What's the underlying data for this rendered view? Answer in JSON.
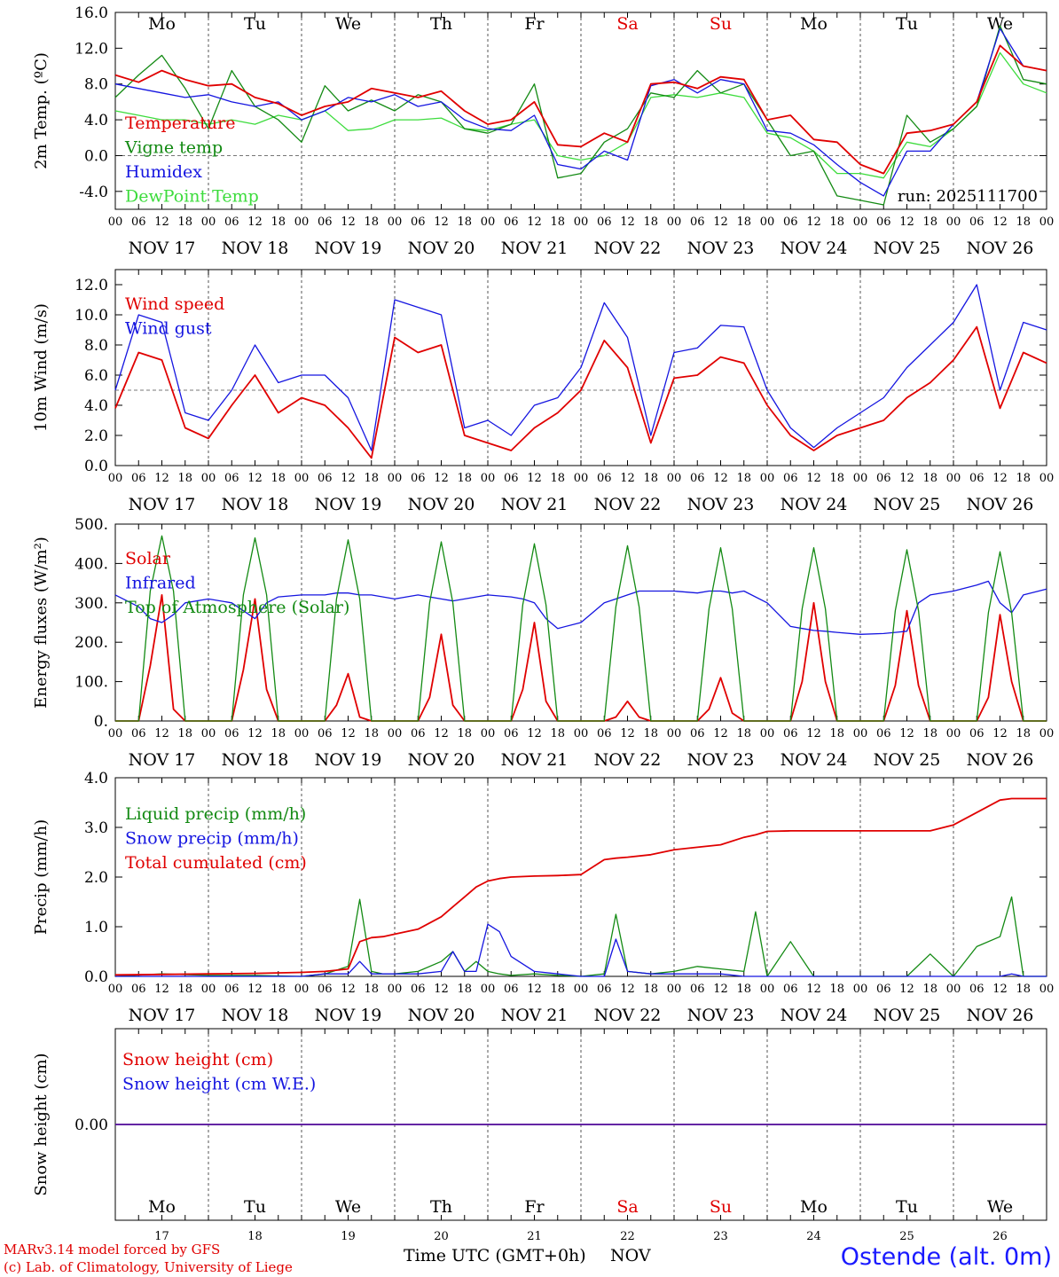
{
  "colors": {
    "red": "#e00000",
    "green": "#138a13",
    "blue": "#1515e0",
    "lightgreen": "#3ddc3d",
    "black": "#000000",
    "grid": "#555555"
  },
  "days_of_week": [
    "Mo",
    "Tu",
    "We",
    "Th",
    "Fr",
    "Sa",
    "Su",
    "Mo",
    "Tu",
    "We"
  ],
  "weekend_flags": [
    false,
    false,
    false,
    false,
    false,
    true,
    true,
    false,
    false,
    false
  ],
  "date_labels": [
    "NOV 17",
    "NOV 18",
    "NOV 19",
    "NOV 20",
    "NOV 21",
    "NOV 22",
    "NOV 23",
    "NOV 24",
    "NOV 25",
    "NOV 26"
  ],
  "hour_ticks": [
    "00",
    "06",
    "12",
    "18"
  ],
  "bottom_day_numbers": [
    "17",
    "18",
    "19",
    "20",
    "21",
    "22",
    "23",
    "24",
    "25",
    "26"
  ],
  "footer": {
    "model_line": "MARv3.14 model forced by GFS",
    "lab_line": "(c) Lab. of Climatology, University of Liege",
    "xlabel": "Time UTC (GMT+0h)",
    "month": "NOV",
    "station": "Ostende (alt. 0m)"
  },
  "chart_data": [
    {
      "type": "line",
      "ylabel": "2m Temp. (ºC)",
      "ylim": [
        -6,
        16
      ],
      "yticks": [
        "16.0",
        "12.0",
        "8.0",
        "4.0",
        "0.0",
        "-4.0"
      ],
      "reference_line": 0,
      "run_label": "run: 2025111700",
      "x_days": [
        17.0,
        17.25,
        17.5,
        17.75,
        18.0,
        18.25,
        18.5,
        18.75,
        19.0,
        19.25,
        19.5,
        19.75,
        20.0,
        20.25,
        20.5,
        20.75,
        21.0,
        21.25,
        21.5,
        21.75,
        22.0,
        22.25,
        22.5,
        22.75,
        23.0,
        23.25,
        23.5,
        23.75,
        24.0,
        24.25,
        24.5,
        24.75,
        25.0,
        25.25,
        25.5,
        25.75,
        26.0,
        26.25,
        26.5,
        26.75,
        27.0
      ],
      "series": [
        {
          "name": "Temperature",
          "color": "red",
          "values": [
            9.0,
            8.2,
            9.5,
            8.5,
            7.8,
            8.0,
            6.5,
            5.8,
            4.5,
            5.5,
            6.0,
            7.5,
            7.0,
            6.5,
            7.2,
            5.0,
            3.5,
            4.0,
            6.0,
            1.2,
            1.0,
            2.5,
            1.5,
            8.0,
            8.2,
            7.5,
            8.8,
            8.5,
            4.0,
            4.5,
            1.8,
            1.5,
            -1.0,
            -2.0,
            2.5,
            2.8,
            3.5,
            6.0,
            12.3,
            10.0,
            9.5
          ]
        },
        {
          "name": "Vigne temp",
          "color": "green",
          "values": [
            6.5,
            9.0,
            11.2,
            7.5,
            3.0,
            9.5,
            5.5,
            4.0,
            1.5,
            7.8,
            5.0,
            6.2,
            5.0,
            6.8,
            6.0,
            3.0,
            2.5,
            3.5,
            8.0,
            -2.5,
            -2.0,
            1.5,
            3.0,
            7.0,
            6.5,
            9.5,
            7.0,
            8.0,
            4.0,
            0.0,
            0.5,
            -4.5,
            -5.0,
            -5.5,
            4.5,
            1.5,
            3.0,
            5.5,
            14.5,
            8.5,
            8.0
          ]
        },
        {
          "name": "Humidex",
          "color": "blue",
          "values": [
            8.0,
            7.5,
            7.0,
            6.5,
            6.8,
            6.0,
            5.5,
            6.0,
            4.0,
            5.0,
            6.5,
            6.0,
            6.8,
            5.5,
            6.0,
            4.0,
            3.0,
            2.8,
            4.5,
            -1.0,
            -1.5,
            0.5,
            -0.5,
            7.8,
            8.5,
            7.0,
            8.5,
            8.0,
            2.8,
            2.5,
            1.2,
            -1.0,
            -3.0,
            -4.5,
            0.5,
            0.5,
            3.5,
            6.0,
            14.2,
            10.0,
            9.5
          ]
        },
        {
          "name": "DewPoint Temp",
          "color": "lightgreen",
          "values": [
            5.0,
            4.5,
            4.0,
            4.0,
            3.5,
            4.0,
            3.5,
            4.5,
            4.0,
            5.0,
            2.8,
            3.0,
            4.0,
            4.0,
            4.2,
            3.0,
            2.8,
            3.5,
            4.0,
            0.0,
            -0.5,
            0.0,
            1.5,
            6.5,
            6.8,
            6.5,
            7.0,
            6.5,
            2.5,
            2.0,
            0.5,
            -2.0,
            -2.0,
            -2.5,
            1.5,
            1.0,
            3.0,
            5.5,
            11.5,
            8.0,
            7.0
          ]
        }
      ]
    },
    {
      "type": "line",
      "ylabel": "10m Wind (m/s)",
      "ylim": [
        0,
        13
      ],
      "yticks": [
        "12.0",
        "10.0",
        "8.0",
        "6.0",
        "4.0",
        "2.0",
        "0.0"
      ],
      "reference_line": 5,
      "x_days": [
        17.0,
        17.25,
        17.5,
        17.75,
        18.0,
        18.25,
        18.5,
        18.75,
        19.0,
        19.25,
        19.5,
        19.75,
        20.0,
        20.25,
        20.5,
        20.75,
        21.0,
        21.25,
        21.5,
        21.75,
        22.0,
        22.25,
        22.5,
        22.75,
        23.0,
        23.25,
        23.5,
        23.75,
        24.0,
        24.25,
        24.5,
        24.75,
        25.0,
        25.25,
        25.5,
        25.75,
        26.0,
        26.25,
        26.5,
        26.75,
        27.0
      ],
      "series": [
        {
          "name": "Wind speed",
          "color": "red",
          "values": [
            3.8,
            7.5,
            7.0,
            2.5,
            1.8,
            4.0,
            6.0,
            3.5,
            4.5,
            4.0,
            2.5,
            0.5,
            8.5,
            7.5,
            8.0,
            2.0,
            1.5,
            1.0,
            2.5,
            3.5,
            5.0,
            8.3,
            6.5,
            1.5,
            5.8,
            6.0,
            7.2,
            6.8,
            4.0,
            2.0,
            1.0,
            2.0,
            2.5,
            3.0,
            4.5,
            5.5,
            7.0,
            9.2,
            3.8,
            7.5,
            6.8
          ]
        },
        {
          "name": "Wind gust",
          "color": "blue",
          "values": [
            5.0,
            10.0,
            9.5,
            3.5,
            3.0,
            5.0,
            8.0,
            5.5,
            6.0,
            6.0,
            4.5,
            1.0,
            11.0,
            10.5,
            10.0,
            2.5,
            3.0,
            2.0,
            4.0,
            4.5,
            6.5,
            10.8,
            8.5,
            2.0,
            7.5,
            7.8,
            9.3,
            9.2,
            5.0,
            2.5,
            1.2,
            2.5,
            3.5,
            4.5,
            6.5,
            8.0,
            9.5,
            12.0,
            5.0,
            9.5,
            9.0
          ]
        }
      ]
    },
    {
      "type": "line",
      "ylabel": "Energy fluxes (W/m²)",
      "ylim": [
        0,
        500
      ],
      "yticks": [
        "500.",
        "400.",
        "300.",
        "200.",
        "100.",
        "0."
      ],
      "reference_line": null,
      "x_days": [
        17.0,
        17.25,
        17.375,
        17.5,
        17.625,
        17.75,
        18.0,
        18.25,
        18.375,
        18.5,
        18.625,
        18.75,
        19.0,
        19.25,
        19.375,
        19.5,
        19.625,
        19.75,
        20.0,
        20.25,
        20.375,
        20.5,
        20.625,
        20.75,
        21.0,
        21.25,
        21.375,
        21.5,
        21.625,
        21.75,
        22.0,
        22.25,
        22.375,
        22.5,
        22.625,
        22.75,
        23.0,
        23.25,
        23.375,
        23.5,
        23.625,
        23.75,
        24.0,
        24.25,
        24.375,
        24.5,
        24.625,
        24.75,
        25.0,
        25.25,
        25.375,
        25.5,
        25.625,
        25.75,
        26.0,
        26.25,
        26.375,
        26.5,
        26.625,
        26.75,
        27.0
      ],
      "series": [
        {
          "name": "Solar",
          "color": "red",
          "values": [
            0,
            0,
            140,
            320,
            30,
            0,
            0,
            0,
            130,
            310,
            80,
            0,
            0,
            0,
            40,
            120,
            10,
            0,
            0,
            0,
            60,
            220,
            40,
            0,
            0,
            0,
            80,
            250,
            50,
            0,
            0,
            0,
            10,
            50,
            10,
            0,
            0,
            0,
            30,
            110,
            20,
            0,
            0,
            0,
            100,
            300,
            100,
            0,
            0,
            0,
            90,
            280,
            90,
            0,
            0,
            0,
            60,
            270,
            100,
            0,
            0
          ]
        },
        {
          "name": "Infrared",
          "color": "blue",
          "values": [
            320,
            290,
            260,
            250,
            270,
            300,
            310,
            300,
            280,
            260,
            300,
            315,
            320,
            320,
            325,
            325,
            320,
            320,
            310,
            320,
            315,
            310,
            305,
            310,
            320,
            315,
            310,
            300,
            260,
            235,
            250,
            300,
            310,
            320,
            330,
            330,
            330,
            325,
            330,
            330,
            325,
            330,
            300,
            240,
            235,
            230,
            228,
            225,
            220,
            222,
            225,
            228,
            300,
            320,
            330,
            345,
            355,
            300,
            275,
            320,
            335
          ]
        },
        {
          "name": "Top of Atmosphere (Solar)",
          "color": "green",
          "values": [
            0,
            0,
            330,
            470,
            330,
            0,
            0,
            0,
            320,
            465,
            320,
            0,
            0,
            0,
            310,
            460,
            310,
            0,
            0,
            0,
            300,
            455,
            300,
            0,
            0,
            0,
            295,
            450,
            295,
            0,
            0,
            0,
            290,
            445,
            290,
            0,
            0,
            0,
            285,
            440,
            285,
            0,
            0,
            0,
            285,
            440,
            285,
            0,
            0,
            0,
            280,
            435,
            280,
            0,
            0,
            0,
            275,
            430,
            275,
            0,
            0
          ]
        }
      ]
    },
    {
      "type": "line",
      "ylabel": "Precip (mm/h)",
      "ylim": [
        0,
        4
      ],
      "yticks": [
        "4.0",
        "3.0",
        "2.0",
        "1.0",
        "0.0"
      ],
      "reference_line": null,
      "x_days": [
        17.0,
        17.5,
        18.0,
        18.5,
        19.0,
        19.25,
        19.5,
        19.625,
        19.75,
        19.875,
        20.0,
        20.25,
        20.5,
        20.625,
        20.75,
        20.875,
        21.0,
        21.125,
        21.25,
        21.5,
        21.75,
        22.0,
        22.25,
        22.375,
        22.5,
        22.75,
        23.0,
        23.25,
        23.5,
        23.75,
        23.875,
        24.0,
        24.25,
        24.5,
        25.0,
        25.5,
        25.75,
        26.0,
        26.25,
        26.5,
        26.625,
        26.75,
        27.0
      ],
      "series": [
        {
          "name": "Liquid precip (mm/h)",
          "color": "green",
          "values": [
            0,
            0.05,
            0.02,
            0.02,
            0.0,
            0.05,
            0.2,
            1.55,
            0.1,
            0.05,
            0.05,
            0.1,
            0.3,
            0.5,
            0.1,
            0.3,
            0.1,
            0.05,
            0.02,
            0.05,
            0.02,
            0.0,
            0.05,
            1.25,
            0.1,
            0.05,
            0.1,
            0.2,
            0.15,
            0.1,
            1.3,
            0.0,
            0.7,
            0.0,
            0.0,
            0.0,
            0.45,
            0.0,
            0.6,
            0.8,
            1.6,
            0.0,
            0.0
          ]
        },
        {
          "name": "Snow precip (mm/h)",
          "color": "blue",
          "values": [
            0,
            0,
            0,
            0,
            0,
            0.05,
            0.05,
            0.3,
            0.05,
            0.05,
            0.05,
            0.05,
            0.1,
            0.5,
            0.1,
            0.1,
            1.05,
            0.9,
            0.4,
            0.1,
            0.05,
            0.0,
            0.0,
            0.75,
            0.1,
            0.05,
            0.05,
            0.05,
            0.05,
            0.0,
            0.0,
            0.0,
            0.0,
            0.0,
            0.0,
            0.0,
            0.0,
            0.0,
            0.0,
            0.0,
            0.05,
            0.0,
            0.0
          ]
        },
        {
          "name": "Total cumulated (cm)",
          "color": "red",
          "values": [
            0.03,
            0.04,
            0.05,
            0.06,
            0.08,
            0.1,
            0.15,
            0.7,
            0.78,
            0.8,
            0.85,
            0.95,
            1.2,
            1.4,
            1.6,
            1.8,
            1.92,
            1.97,
            2.0,
            2.02,
            2.03,
            2.05,
            2.35,
            2.38,
            2.4,
            2.45,
            2.55,
            2.6,
            2.65,
            2.8,
            2.85,
            2.92,
            2.93,
            2.93,
            2.93,
            2.93,
            2.93,
            3.05,
            3.3,
            3.55,
            3.58,
            3.58,
            3.58
          ]
        }
      ]
    },
    {
      "type": "line",
      "ylabel": "Snow height (cm)",
      "ylim": [
        -1,
        1
      ],
      "yticks": [
        "0.00"
      ],
      "reference_line": null,
      "x_days": [
        17.0,
        27.0
      ],
      "series": [
        {
          "name": "Snow height (cm)",
          "color": "red",
          "values": [
            0.0,
            0.0
          ]
        },
        {
          "name": "Snow height (cm W.E.)",
          "color": "blue",
          "values": [
            0.0,
            0.0
          ]
        }
      ]
    }
  ]
}
